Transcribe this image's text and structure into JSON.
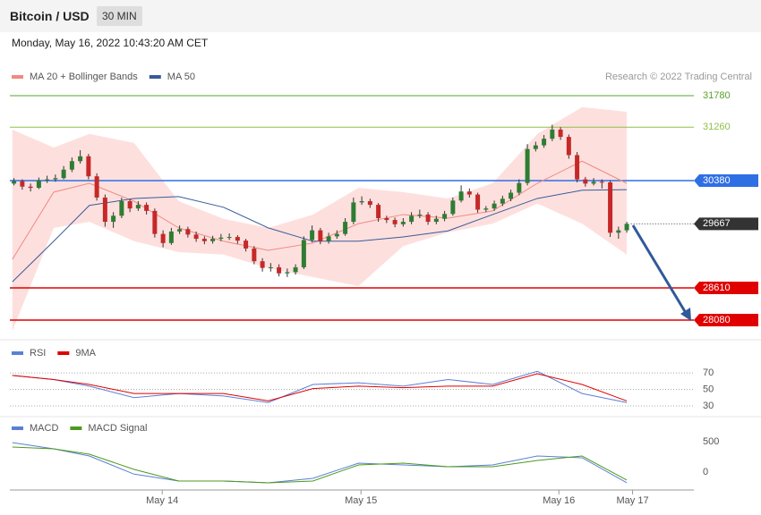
{
  "header": {
    "title": "Bitcoin / USD",
    "timeframe": "30 MIN",
    "timestamp": "Monday, May 16, 2022 10:43:20 AM CET"
  },
  "chart_data": [
    {
      "type": "candlestick",
      "credit": "Research © 2022 Trading Central",
      "xlim": [
        0,
        82.6
      ],
      "ylim": [
        27785,
        32325
      ],
      "up_color": "#2e7d32",
      "down_color": "#c62828",
      "candles": [
        [
          30330,
          30420,
          30300,
          30370
        ],
        [
          30370,
          30400,
          30230,
          30280
        ],
        [
          30280,
          30330,
          30200,
          30260
        ],
        [
          30260,
          30430,
          30240,
          30380
        ],
        [
          30380,
          30460,
          30340,
          30400
        ],
        [
          30400,
          30480,
          30360,
          30420
        ],
        [
          30420,
          30620,
          30400,
          30560
        ],
        [
          30560,
          30760,
          30520,
          30700
        ],
        [
          30700,
          30880,
          30660,
          30780
        ],
        [
          30780,
          30820,
          30400,
          30450
        ],
        [
          30450,
          30500,
          30050,
          30100
        ],
        [
          30100,
          30150,
          29620,
          29700
        ],
        [
          29700,
          29860,
          29600,
          29800
        ],
        [
          29800,
          30100,
          29760,
          30040
        ],
        [
          30040,
          30080,
          29860,
          29920
        ],
        [
          29920,
          30040,
          29880,
          29980
        ],
        [
          29980,
          30020,
          29820,
          29880
        ],
        [
          29880,
          29920,
          29440,
          29500
        ],
        [
          29500,
          29560,
          29280,
          29350
        ],
        [
          29350,
          29600,
          29320,
          29540
        ],
        [
          29540,
          29640,
          29500,
          29580
        ],
        [
          29580,
          29620,
          29440,
          29490
        ],
        [
          29490,
          29540,
          29370,
          29420
        ],
        [
          29420,
          29460,
          29330,
          29380
        ],
        [
          29380,
          29470,
          29340,
          29420
        ],
        [
          29420,
          29500,
          29380,
          29440
        ],
        [
          29440,
          29510,
          29400,
          29450
        ],
        [
          29450,
          29480,
          29340,
          29390
        ],
        [
          29390,
          29420,
          29210,
          29260
        ],
        [
          29260,
          29300,
          29000,
          29050
        ],
        [
          29050,
          29100,
          28880,
          28940
        ],
        [
          28940,
          29020,
          28880,
          28950
        ],
        [
          28950,
          29000,
          28800,
          28850
        ],
        [
          28850,
          28930,
          28790,
          28870
        ],
        [
          28870,
          29000,
          28830,
          28950
        ],
        [
          28950,
          29460,
          28920,
          29400
        ],
        [
          29400,
          29640,
          29360,
          29560
        ],
        [
          29560,
          29600,
          29330,
          29380
        ],
        [
          29380,
          29520,
          29340,
          29460
        ],
        [
          29460,
          29560,
          29420,
          29500
        ],
        [
          29500,
          29760,
          29470,
          29700
        ],
        [
          29700,
          30100,
          29660,
          30020
        ],
        [
          30020,
          30120,
          29980,
          30040
        ],
        [
          30040,
          30080,
          29930,
          29980
        ],
        [
          29980,
          30010,
          29700,
          29760
        ],
        [
          29760,
          29800,
          29680,
          29730
        ],
        [
          29730,
          29770,
          29610,
          29660
        ],
        [
          29660,
          29760,
          29620,
          29700
        ],
        [
          29700,
          29860,
          29660,
          29800
        ],
        [
          29800,
          29900,
          29760,
          29820
        ],
        [
          29820,
          29860,
          29650,
          29700
        ],
        [
          29700,
          29800,
          29660,
          29750
        ],
        [
          29750,
          29880,
          29710,
          29830
        ],
        [
          29830,
          30100,
          29800,
          30050
        ],
        [
          30050,
          30300,
          30020,
          30200
        ],
        [
          30200,
          30250,
          30100,
          30150
        ],
        [
          30150,
          30180,
          29850,
          29900
        ],
        [
          29900,
          29960,
          29860,
          29920
        ],
        [
          29920,
          30050,
          29880,
          30000
        ],
        [
          30000,
          30130,
          29960,
          30080
        ],
        [
          30080,
          30230,
          30040,
          30180
        ],
        [
          30180,
          30400,
          30140,
          30340
        ],
        [
          30340,
          30980,
          30300,
          30900
        ],
        [
          30900,
          31020,
          30860,
          30960
        ],
        [
          30960,
          31130,
          30920,
          31070
        ],
        [
          31070,
          31300,
          31030,
          31220
        ],
        [
          31220,
          31260,
          31050,
          31100
        ],
        [
          31100,
          31140,
          30740,
          30800
        ],
        [
          30800,
          30850,
          30350,
          30400
        ],
        [
          30400,
          30440,
          30280,
          30330
        ],
        [
          30330,
          30420,
          30300,
          30360
        ],
        [
          30360,
          30400,
          30250,
          30350
        ],
        [
          30350,
          30380,
          29450,
          29520
        ],
        [
          29520,
          29620,
          29420,
          29560
        ],
        [
          29560,
          29700,
          29520,
          29667
        ]
      ],
      "overlay_x": [
        0.3,
        5.3,
        9.6,
        15.0,
        20.4,
        25.8,
        31.2,
        36.6,
        42.1,
        47.5,
        52.9,
        58.3,
        63.7,
        69.1,
        74.5
      ],
      "overlays": [
        {
          "name": "MA 20 + Bollinger Bands",
          "color": "#f08a80",
          "band_color": "#fde0de",
          "values": [
            29080,
            30190,
            30335,
            30040,
            29600,
            29380,
            29230,
            29350,
            29670,
            29820,
            29760,
            29880,
            30335,
            30700,
            30335
          ],
          "upper": [
            31220,
            30925,
            31150,
            31000,
            30040,
            29750,
            29600,
            29820,
            30260,
            30190,
            30085,
            30335,
            31150,
            31590,
            31515
          ],
          "lower": [
            27900,
            29600,
            29700,
            29380,
            29200,
            29160,
            28935,
            28790,
            28640,
            29300,
            29525,
            29670,
            30000,
            29670,
            29160
          ]
        },
        {
          "name": "MA 50",
          "color": "#3a5a9a",
          "values": [
            28710,
            29380,
            29970,
            30085,
            30115,
            29940,
            29600,
            29380,
            29380,
            29450,
            29550,
            29820,
            30085,
            30220,
            30230
          ]
        }
      ],
      "levels": [
        {
          "value": 31780,
          "color": "#5aa02c",
          "tag": false,
          "style": "solid"
        },
        {
          "value": 31260,
          "color": "#8fc04a",
          "tag": false,
          "style": "solid"
        },
        {
          "value": 30380,
          "color": "#2f6fe4",
          "tag": true,
          "style": "solid"
        },
        {
          "value": 29667,
          "color": "#333333",
          "tag": true,
          "style": "dotted"
        },
        {
          "value": 28610,
          "color": "#e00000",
          "tag": true,
          "style": "solid"
        },
        {
          "value": 28080,
          "color": "#e00000",
          "tag": true,
          "style": "solid"
        }
      ]
    },
    {
      "type": "line",
      "ylim": [
        18,
        107
      ],
      "yticks": [
        70,
        50,
        30
      ],
      "grid": true,
      "x": [
        0.3,
        5.3,
        9.6,
        15.0,
        20.4,
        25.8,
        31.2,
        36.6,
        42.1,
        47.5,
        52.9,
        58.3,
        63.7,
        69.1,
        74.5
      ],
      "series": [
        {
          "name": "RSI",
          "color": "#5b7fd6",
          "values": [
            67,
            62,
            54,
            40,
            45,
            42,
            34,
            56,
            58,
            54,
            62,
            56,
            72,
            45,
            34
          ]
        },
        {
          "name": "9MA",
          "color": "#e00000",
          "values": [
            67,
            62,
            56,
            45,
            45,
            45,
            36,
            51,
            54,
            52,
            54,
            54,
            69,
            56,
            36
          ]
        }
      ]
    },
    {
      "type": "line",
      "ylim": [
        -290,
        900
      ],
      "yticks": [
        500,
        0
      ],
      "x": [
        0.3,
        5.3,
        9.6,
        15.0,
        20.4,
        25.8,
        31.2,
        36.6,
        42.1,
        47.5,
        52.9,
        58.3,
        63.7,
        69.1,
        74.5
      ],
      "xticks": [
        {
          "value": 18.4,
          "label": "May 14"
        },
        {
          "value": 42.4,
          "label": "May 15"
        },
        {
          "value": 66.3,
          "label": "May 16"
        },
        {
          "value": 75.2,
          "label": "May 17"
        }
      ],
      "series": [
        {
          "name": "MACD",
          "color": "#5b7fd6",
          "values": [
            489,
            386,
            268,
            -30,
            -143,
            -143,
            -172,
            -99,
            151,
            121,
            92,
            121,
            268,
            239,
            -172
          ]
        },
        {
          "name": "MACD Signal",
          "color": "#4c9a1c",
          "values": [
            415,
            386,
            298,
            48,
            -143,
            -143,
            -172,
            -143,
            121,
            151,
            92,
            92,
            195,
            268,
            -128
          ]
        }
      ]
    }
  ]
}
